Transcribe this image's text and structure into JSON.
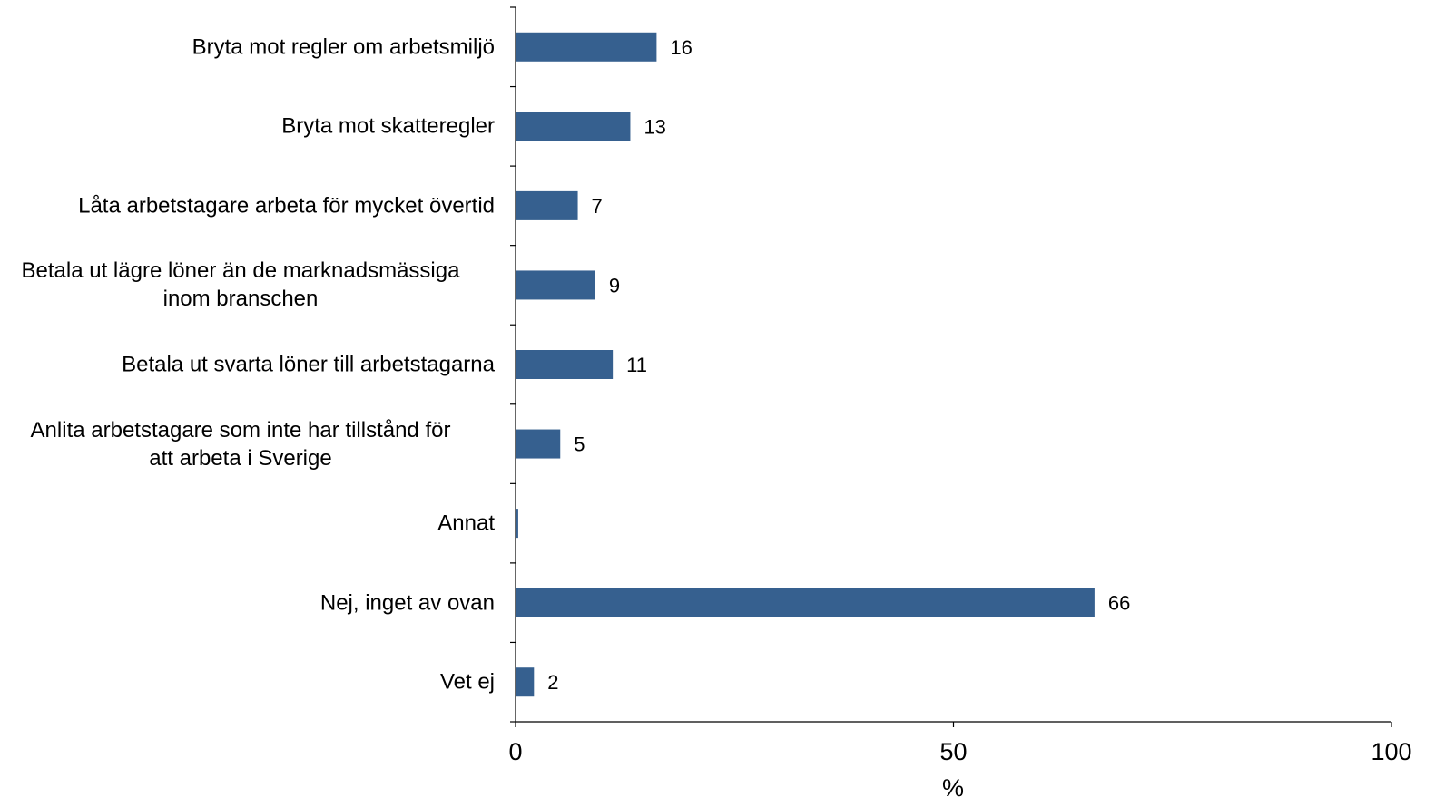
{
  "chart_data": {
    "type": "bar",
    "orientation": "horizontal",
    "categories": [
      "Bryta mot regler om arbetsmiljö",
      "Bryta mot skatteregler",
      "Låta arbetstagare arbeta för mycket övertid",
      "Betala ut lägre löner än de marknadsmässiga inom branschen",
      "Betala ut svarta löner till arbetstagarna",
      "Anlita arbetstagare som inte har tillstånd för att arbeta i Sverige",
      "Annat",
      "Nej, inget av ovan",
      "Vet ej"
    ],
    "category_lines": [
      [
        "Bryta mot regler om arbetsmiljö"
      ],
      [
        "Bryta mot skatteregler"
      ],
      [
        "Låta arbetstagare arbeta för mycket övertid"
      ],
      [
        "Betala ut lägre löner än de marknadsmässiga",
        "inom branschen"
      ],
      [
        "Betala ut svarta löner till arbetstagarna"
      ],
      [
        "Anlita arbetstagare som inte har tillstånd för",
        "att arbeta i Sverige"
      ],
      [
        "Annat"
      ],
      [
        "Nej, inget av ovan"
      ],
      [
        "Vet ej"
      ]
    ],
    "values": [
      16,
      13,
      7,
      9,
      11,
      5,
      0.2,
      66,
      2
    ],
    "data_labels": [
      "16",
      "13",
      "7",
      "9",
      "11",
      "5",
      "",
      "66",
      "2"
    ],
    "xlabel": "%",
    "xlim": [
      0,
      100
    ],
    "xticks": [
      "0",
      "50",
      "100"
    ],
    "bar_color": "#36608F",
    "grid": false,
    "legend": "none"
  }
}
